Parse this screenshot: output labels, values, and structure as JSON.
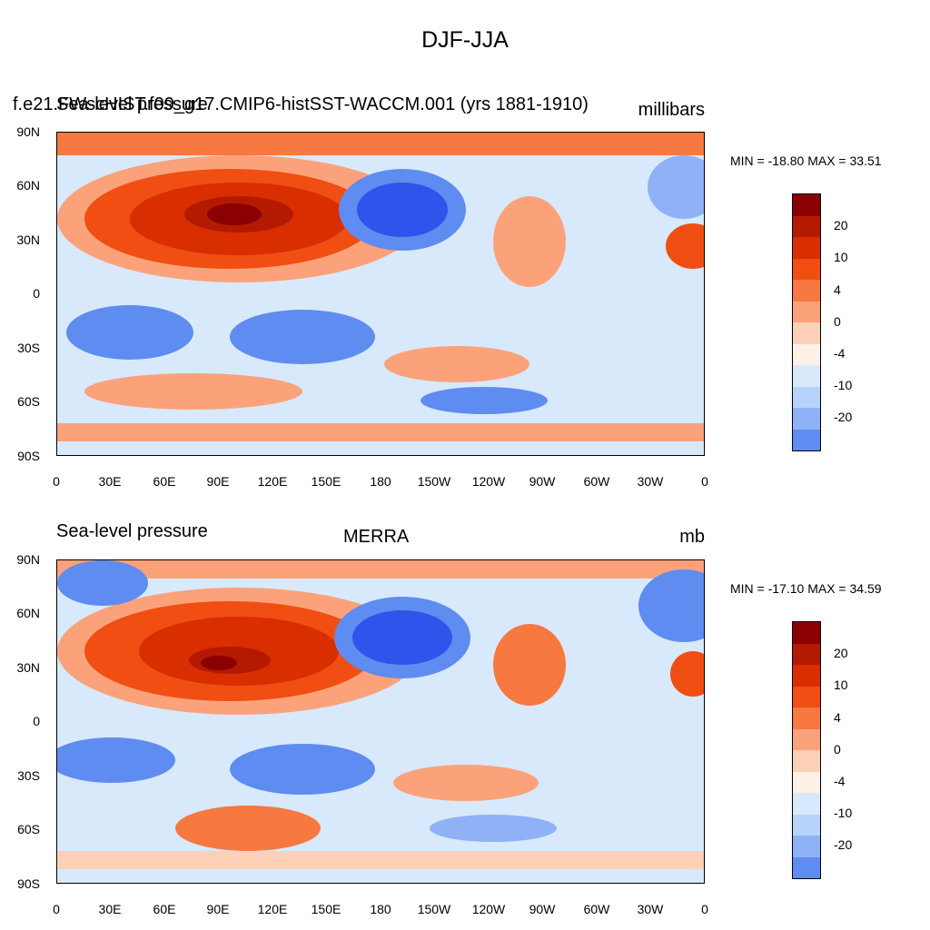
{
  "title": "DJF-JJA",
  "colors": [
    "#8b0000",
    "#b31a00",
    "#d92e00",
    "#f04e12",
    "#f77840",
    "#fca27b",
    "#fdd0b7",
    "#fdf0e7",
    "#d8e9fb",
    "#b8d3fb",
    "#8fb2f7",
    "#5e8cf0",
    "#2d55eb",
    "#0a2fd9",
    "#0019aa",
    "#000b82"
  ],
  "colorbar_labels": [
    "20",
    "10",
    "4",
    "0",
    "-4",
    "-10",
    "-20"
  ],
  "lat_ticks": [
    "90N",
    "60N",
    "30N",
    "0",
    "30S",
    "60S",
    "90S"
  ],
  "lon_ticks": [
    "0",
    "30E",
    "60E",
    "90E",
    "120E",
    "150E",
    "180",
    "150W",
    "120W",
    "90W",
    "60W",
    "30W",
    "0"
  ],
  "panels": [
    {
      "left_label": "Sea-level pressure",
      "case_label": "f.e21.FWscHIST.f09_g17.CMIP6-histSST-WACCM.001 (yrs 1881-1910)",
      "units_label": "millibars",
      "stats": "MIN = -18.80 MAX =  33.51"
    },
    {
      "left_label": "Sea-level pressure",
      "case_label": "MERRA",
      "units_label": "mb",
      "stats": "MIN = -17.10 MAX =  34.59"
    }
  ]
}
